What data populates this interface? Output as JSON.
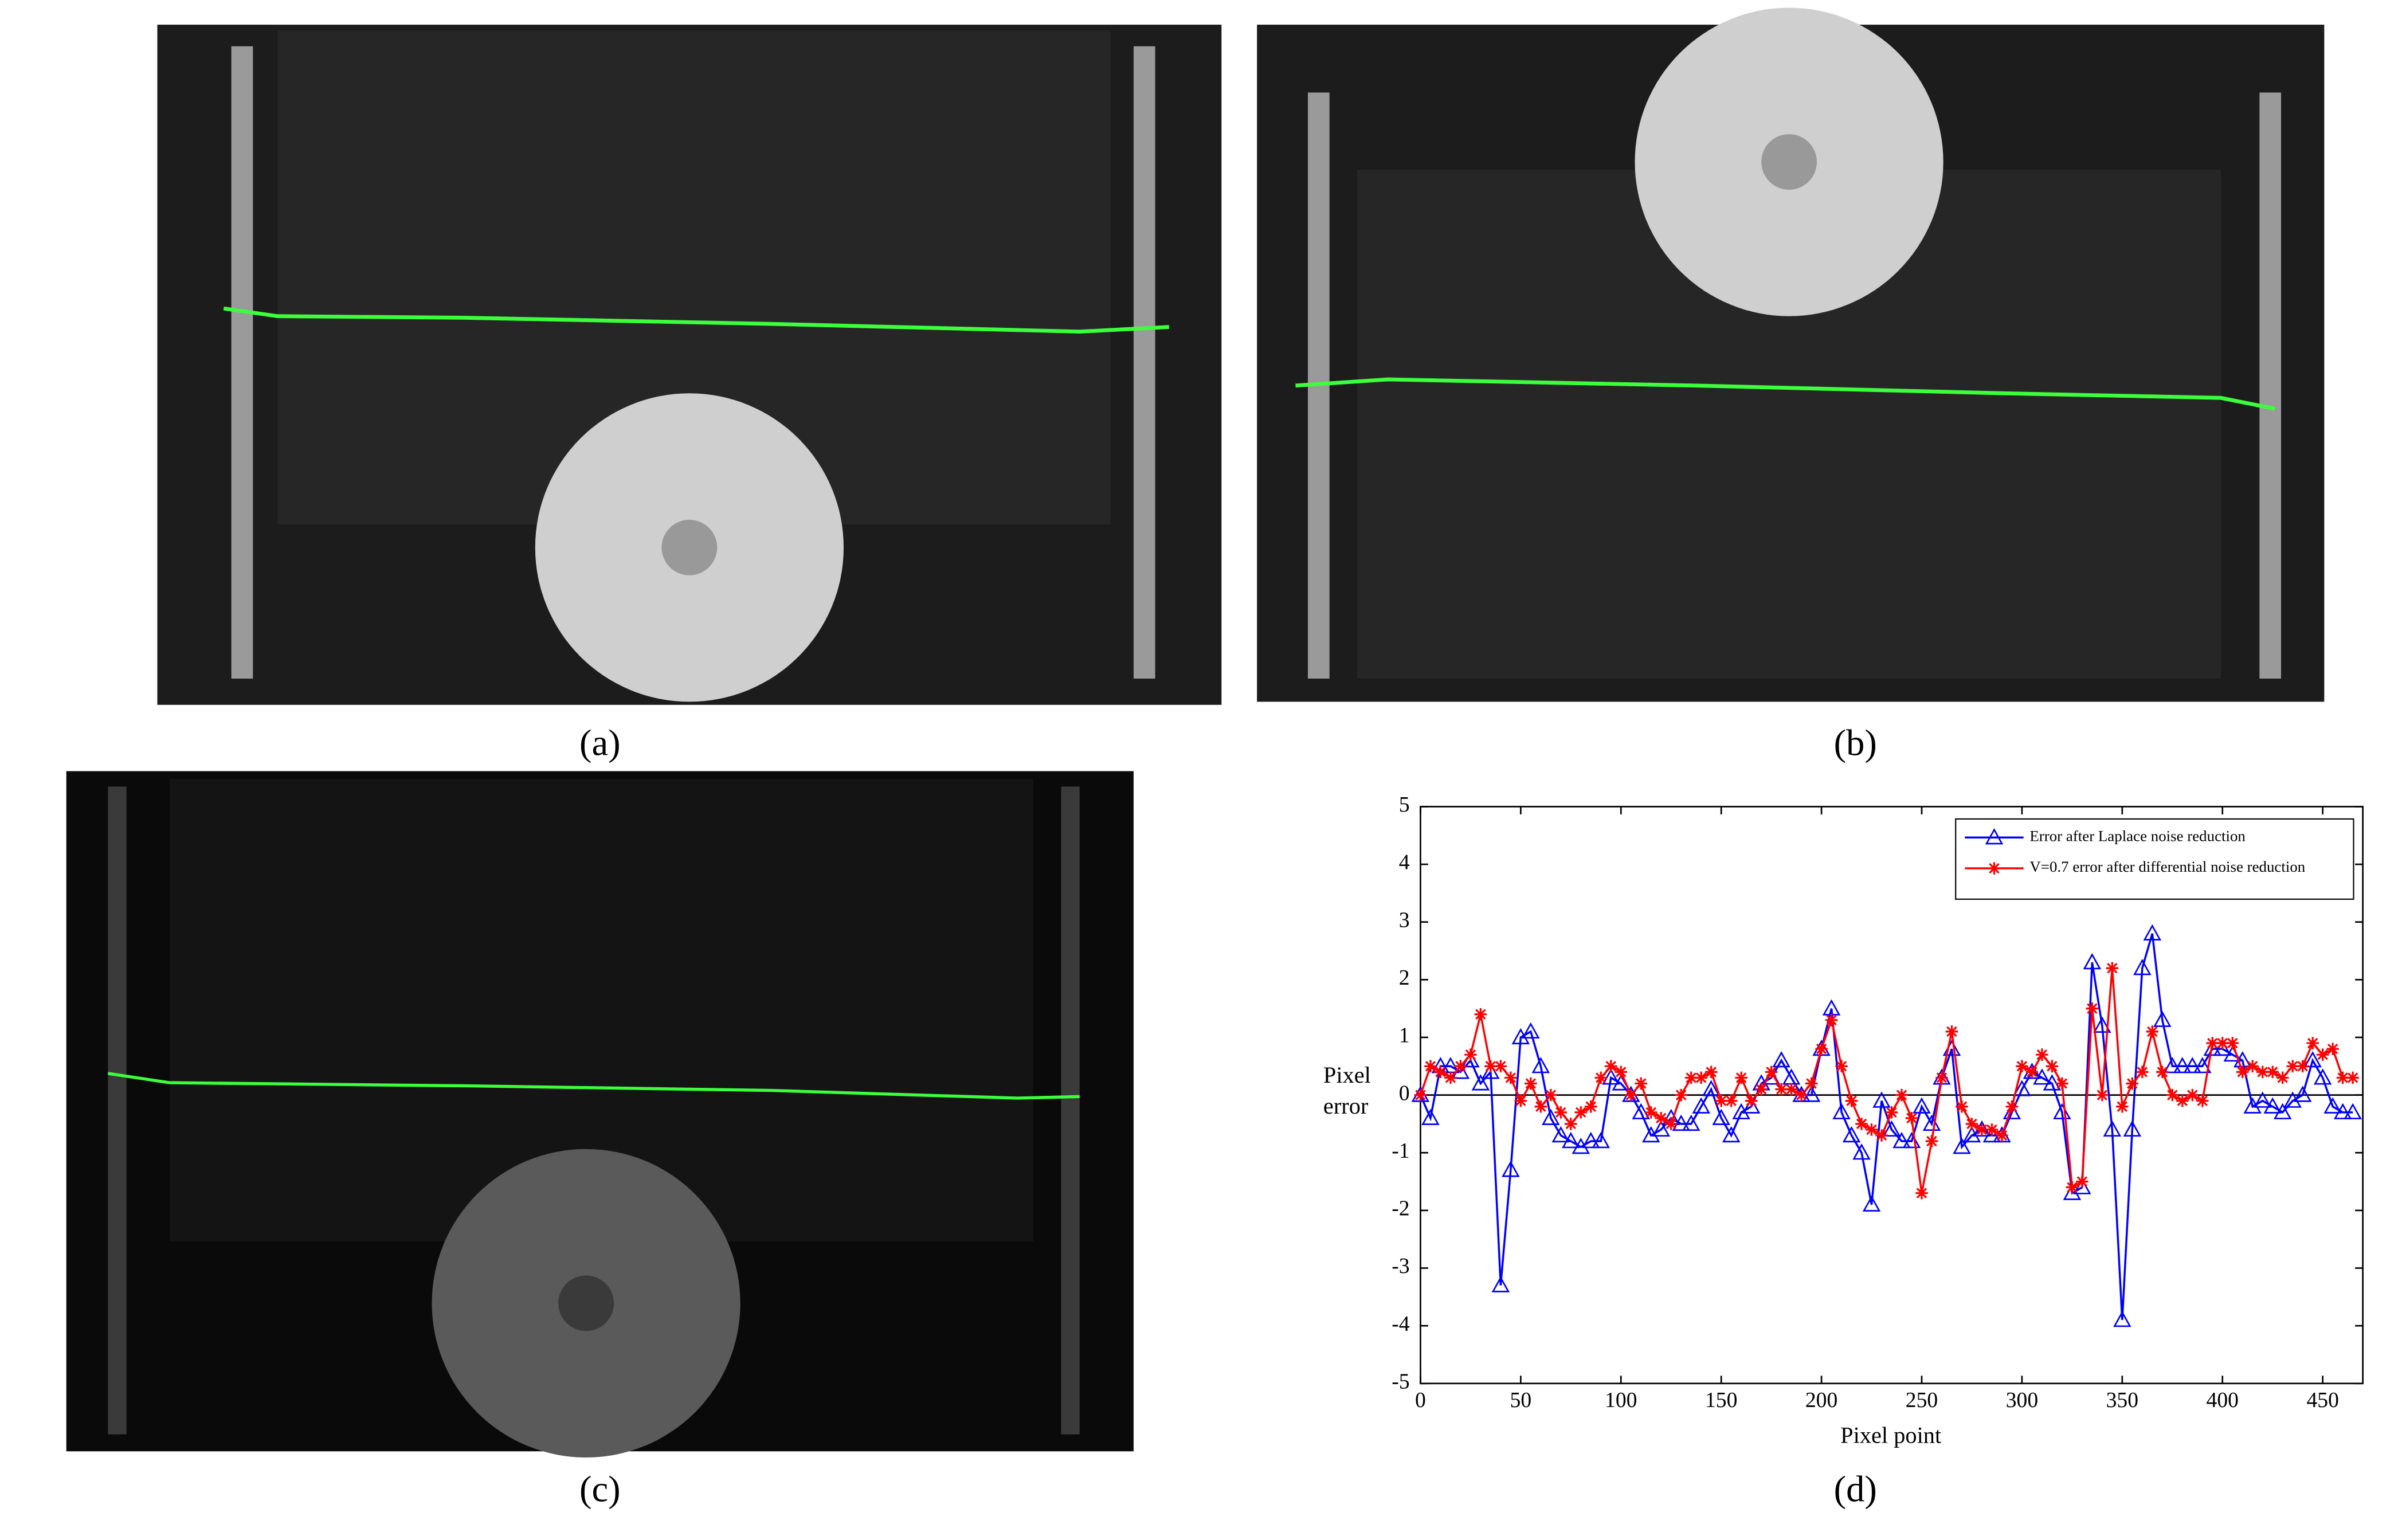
{
  "captions": [
    "(a)",
    "(b)",
    "(c)",
    "(d)"
  ],
  "chart_data": {
    "type": "line",
    "xlabel": "Pixel point",
    "ylabel": "Pixel error",
    "xlim": [
      0,
      470
    ],
    "ylim": [
      -5,
      5
    ],
    "xticks": [
      0,
      50,
      100,
      150,
      200,
      250,
      300,
      350,
      400,
      450
    ],
    "yticks": [
      -5,
      -4,
      -3,
      -2,
      -1,
      0,
      1,
      2,
      3,
      4,
      5
    ],
    "legend": "upper right",
    "x": [
      0,
      5,
      10,
      15,
      20,
      25,
      30,
      35,
      40,
      45,
      50,
      55,
      60,
      65,
      70,
      75,
      80,
      85,
      90,
      95,
      100,
      105,
      110,
      115,
      120,
      125,
      130,
      135,
      140,
      145,
      150,
      155,
      160,
      165,
      170,
      175,
      180,
      185,
      190,
      195,
      200,
      205,
      210,
      215,
      220,
      225,
      230,
      235,
      240,
      245,
      250,
      255,
      260,
      265,
      270,
      275,
      280,
      285,
      290,
      295,
      300,
      305,
      310,
      315,
      320,
      325,
      330,
      335,
      340,
      345,
      350,
      355,
      360,
      365,
      370,
      375,
      380,
      385,
      390,
      395,
      400,
      405,
      410,
      415,
      420,
      425,
      430,
      435,
      440,
      445,
      450,
      455,
      460,
      465
    ],
    "series": [
      {
        "name": "Error after Laplace noise reduction",
        "color": "#0000ff",
        "marker": "triangle",
        "values": [
          0,
          -0.4,
          0.5,
          0.5,
          0.4,
          0.6,
          0.2,
          0.4,
          -3.3,
          -1.3,
          1.0,
          1.1,
          0.5,
          -0.4,
          -0.7,
          -0.8,
          -0.9,
          -0.8,
          -0.8,
          0.3,
          0.2,
          0.0,
          -0.3,
          -0.7,
          -0.6,
          -0.4,
          -0.5,
          -0.5,
          -0.2,
          0.1,
          -0.4,
          -0.7,
          -0.3,
          -0.2,
          0.2,
          0.3,
          0.6,
          0.3,
          0.0,
          0.0,
          0.8,
          1.5,
          -0.3,
          -0.7,
          -1.0,
          -1.9,
          -0.1,
          -0.6,
          -0.8,
          -0.8,
          -0.2,
          -0.5,
          0.3,
          0.8,
          -0.9,
          -0.7,
          -0.6,
          -0.7,
          -0.7,
          -0.3,
          0.1,
          0.4,
          0.3,
          0.2,
          -0.3,
          -1.7,
          -1.6,
          2.3,
          1.2,
          -0.6,
          -3.9,
          -0.6,
          2.2,
          2.8,
          1.3,
          0.5,
          0.5,
          0.5,
          0.5,
          0.8,
          0.8,
          0.7,
          0.6,
          -0.2,
          -0.1,
          -0.2,
          -0.3,
          -0.1,
          0.0,
          0.6,
          0.3,
          -0.2,
          -0.3,
          -0.3
        ]
      },
      {
        "name": "V=0.7 error after differential noise reduction",
        "color": "#ff0000",
        "marker": "star",
        "values": [
          0,
          0.5,
          0.4,
          0.3,
          0.5,
          0.7,
          1.4,
          0.5,
          0.5,
          0.3,
          -0.1,
          0.2,
          -0.2,
          0.0,
          -0.3,
          -0.5,
          -0.3,
          -0.2,
          0.3,
          0.5,
          0.4,
          0.0,
          0.2,
          -0.3,
          -0.4,
          -0.5,
          0.0,
          0.3,
          0.3,
          0.4,
          -0.1,
          -0.1,
          0.3,
          -0.1,
          0.1,
          0.4,
          0.1,
          0.1,
          0.0,
          0.2,
          0.8,
          1.3,
          0.5,
          -0.1,
          -0.5,
          -0.6,
          -0.7,
          -0.3,
          0.0,
          -0.4,
          -1.7,
          -0.8,
          0.3,
          1.1,
          -0.2,
          -0.5,
          -0.6,
          -0.6,
          -0.7,
          -0.2,
          0.5,
          0.4,
          0.7,
          0.5,
          0.2,
          -1.6,
          -1.5,
          1.5,
          0.0,
          2.2,
          -0.2,
          0.2,
          0.4,
          1.1,
          0.4,
          0.0,
          -0.1,
          0.0,
          -0.1,
          0.9,
          0.9,
          0.9,
          0.4,
          0.5,
          0.4,
          0.4,
          0.3,
          0.5,
          0.5,
          0.9,
          0.7,
          0.8,
          0.3,
          0.3
        ]
      }
    ]
  }
}
